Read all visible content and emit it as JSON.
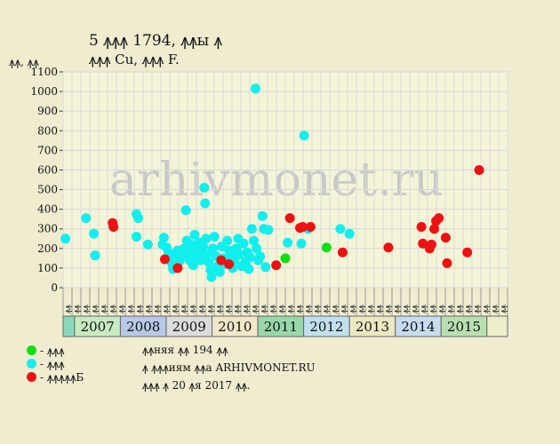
{
  "header": {
    "title": "5 ꙟꙟꙟ 1794, ꙟꙟы ꙟ",
    "subtitle": "ꙟꙟꙟ Cu, ꙟꙟꙟ F.",
    "y_unit": "ꙟꙟ, ꙟꙟ"
  },
  "legend": [
    {
      "label": "- ꙟꙟꙟ",
      "color": "#22ee22"
    },
    {
      "label": "- ꙟꙟꙟ",
      "color": "#22eeee"
    },
    {
      "label": "- ꙟꙟꙟꙟꙟБ",
      "color": "#ee2222"
    }
  ],
  "notes": [
    "ꙟꙟняя ꙟꙟ 194 ꙟꙟ",
    "ꙟ ꙟꙟꙟиям ꙟꙟа ARHIVMONET.RU",
    "ꙟꙟꙟ ꙟ 20 ꙟя 2017 ꙟꙟ."
  ],
  "watermark": "arhivmonet.ru",
  "chart_data": {
    "type": "scatter",
    "ylim": [
      0,
      1100
    ],
    "yticks": [
      0,
      100,
      200,
      300,
      400,
      500,
      600,
      700,
      800,
      900,
      1000,
      1100
    ],
    "x_range": [
      2006.0,
      2015.7
    ],
    "grid": true,
    "months": [
      "ꙟꙟ",
      "ꙟꙟ",
      "ꙟꙟ",
      "ꙟꙟ",
      "ꙟꙟ",
      "ꙟꙟ",
      "ꙟꙟ",
      "ꙟꙟ",
      "ꙟꙟ",
      "ꙟꙟ",
      "ꙟꙟ",
      "ꙟꙟ",
      "ꙟꙟ",
      "ꙟꙟ",
      "ꙟꙟ",
      "ꙟꙟ",
      "ꙟꙟ",
      "ꙟꙟ",
      "ꙟꙟ",
      "ꙟꙟ",
      "ꙟꙟ",
      "ꙟꙟ",
      "ꙟꙟ",
      "ꙟꙟ",
      "ꙟꙟ",
      "ꙟꙟ",
      "ꙟꙟ",
      "ꙟꙟ",
      "ꙟꙟ",
      "ꙟꙟ",
      "ꙟꙟ",
      "ꙟꙟ",
      "ꙟꙟ",
      "ꙟꙟ",
      "ꙟꙟ",
      "ꙟꙟ",
      "ꙟꙟ",
      "ꙟꙟ",
      "ꙟꙟ",
      "ꙟꙟ",
      "ꙟꙟ",
      "ꙟꙟ",
      "ꙟꙟ",
      "ꙟꙟ",
      "ꙟꙟ",
      "ꙟꙟ",
      "ꙟꙟ",
      "ꙟꙟ",
      "ꙟꙟ",
      "ꙟꙟ"
    ],
    "years": [
      {
        "label": "",
        "start": 2006.0,
        "end": 2006.25,
        "color": "#8ad8b8"
      },
      {
        "label": "2007",
        "start": 2006.25,
        "end": 2007.25,
        "color": "#c8eac0"
      },
      {
        "label": "2008",
        "start": 2007.25,
        "end": 2008.25,
        "color": "#b8c8e8"
      },
      {
        "label": "2009",
        "start": 2008.25,
        "end": 2009.25,
        "color": "#dcdcdc"
      },
      {
        "label": "2010",
        "start": 2009.25,
        "end": 2010.25,
        "color": "#f0e8c8"
      },
      {
        "label": "2011",
        "start": 2010.25,
        "end": 2011.25,
        "color": "#98d8a8"
      },
      {
        "label": "2012",
        "start": 2011.25,
        "end": 2012.25,
        "color": "#c0e0f0"
      },
      {
        "label": "2013",
        "start": 2012.25,
        "end": 2013.25,
        "color": "#ece8c0"
      },
      {
        "label": "2014",
        "start": 2013.25,
        "end": 2014.25,
        "color": "#c8dcf0"
      },
      {
        "label": "2015",
        "start": 2014.25,
        "end": 2015.25,
        "color": "#b8e0b0"
      },
      {
        "label": "",
        "start": 2015.25,
        "end": 2015.7,
        "color": "#eeeecc"
      }
    ],
    "series": [
      {
        "name": "green",
        "color": "#11dd11",
        "points": [
          [
            2010.85,
            150
          ],
          [
            2011.75,
            205
          ]
        ]
      },
      {
        "name": "cyan",
        "color": "#11eeee",
        "points": [
          [
            2006.05,
            250
          ],
          [
            2006.5,
            355
          ],
          [
            2006.67,
            275
          ],
          [
            2006.7,
            165
          ],
          [
            2007.6,
            375
          ],
          [
            2007.64,
            355
          ],
          [
            2007.6,
            260
          ],
          [
            2007.85,
            220
          ],
          [
            2008.2,
            255
          ],
          [
            2008.17,
            220
          ],
          [
            2008.26,
            205
          ],
          [
            2008.3,
            180
          ],
          [
            2008.32,
            150
          ],
          [
            2008.38,
            120
          ],
          [
            2008.4,
            95
          ],
          [
            2008.44,
            170
          ],
          [
            2008.5,
            190
          ],
          [
            2008.54,
            135
          ],
          [
            2008.6,
            160
          ],
          [
            2008.64,
            200
          ],
          [
            2008.68,
            395
          ],
          [
            2008.7,
            240
          ],
          [
            2008.74,
            180
          ],
          [
            2008.76,
            140
          ],
          [
            2008.8,
            220
          ],
          [
            2008.84,
            115
          ],
          [
            2008.87,
            270
          ],
          [
            2008.9,
            160
          ],
          [
            2008.93,
            195
          ],
          [
            2008.97,
            230
          ],
          [
            2009.0,
            140
          ],
          [
            2009.03,
            180
          ],
          [
            2009.06,
            210
          ],
          [
            2009.08,
            510
          ],
          [
            2009.1,
            430
          ],
          [
            2009.12,
            250
          ],
          [
            2009.14,
            170
          ],
          [
            2009.18,
            130
          ],
          [
            2009.22,
            90
          ],
          [
            2009.24,
            55
          ],
          [
            2009.27,
            200
          ],
          [
            2009.3,
            260
          ],
          [
            2009.34,
            160
          ],
          [
            2009.38,
            110
          ],
          [
            2009.42,
            80
          ],
          [
            2009.46,
            210
          ],
          [
            2009.5,
            150
          ],
          [
            2009.54,
            120
          ],
          [
            2009.58,
            240
          ],
          [
            2009.62,
            190
          ],
          [
            2009.66,
            160
          ],
          [
            2009.7,
            100
          ],
          [
            2009.74,
            140
          ],
          [
            2009.78,
            200
          ],
          [
            2009.82,
            250
          ],
          [
            2009.86,
            170
          ],
          [
            2009.9,
            110
          ],
          [
            2009.94,
            225
          ],
          [
            2009.98,
            130
          ],
          [
            2010.02,
            180
          ],
          [
            2010.05,
            95
          ],
          [
            2010.08,
            155
          ],
          [
            2010.12,
            300
          ],
          [
            2010.16,
            240
          ],
          [
            2010.2,
            1015
          ],
          [
            2010.22,
            200
          ],
          [
            2010.26,
            140
          ],
          [
            2010.3,
            160
          ],
          [
            2010.35,
            365
          ],
          [
            2010.38,
            300
          ],
          [
            2010.42,
            105
          ],
          [
            2010.48,
            295
          ],
          [
            2010.9,
            230
          ],
          [
            2011.2,
            225
          ],
          [
            2011.26,
            775
          ],
          [
            2011.35,
            300
          ],
          [
            2012.05,
            300
          ],
          [
            2012.25,
            275
          ]
        ]
      },
      {
        "name": "red",
        "color": "#ee1111",
        "points": [
          [
            2007.08,
            330
          ],
          [
            2007.1,
            310
          ],
          [
            2008.22,
            145
          ],
          [
            2008.5,
            100
          ],
          [
            2009.45,
            140
          ],
          [
            2009.62,
            120
          ],
          [
            2010.65,
            115
          ],
          [
            2010.95,
            355
          ],
          [
            2011.17,
            305
          ],
          [
            2011.23,
            310
          ],
          [
            2011.4,
            310
          ],
          [
            2012.1,
            180
          ],
          [
            2013.1,
            205
          ],
          [
            2013.82,
            310
          ],
          [
            2013.85,
            225
          ],
          [
            2014.0,
            200
          ],
          [
            2014.04,
            220
          ],
          [
            2014.1,
            300
          ],
          [
            2014.14,
            340
          ],
          [
            2014.2,
            355
          ],
          [
            2014.35,
            255
          ],
          [
            2014.38,
            125
          ],
          [
            2014.82,
            180
          ],
          [
            2015.08,
            600
          ]
        ]
      }
    ]
  }
}
